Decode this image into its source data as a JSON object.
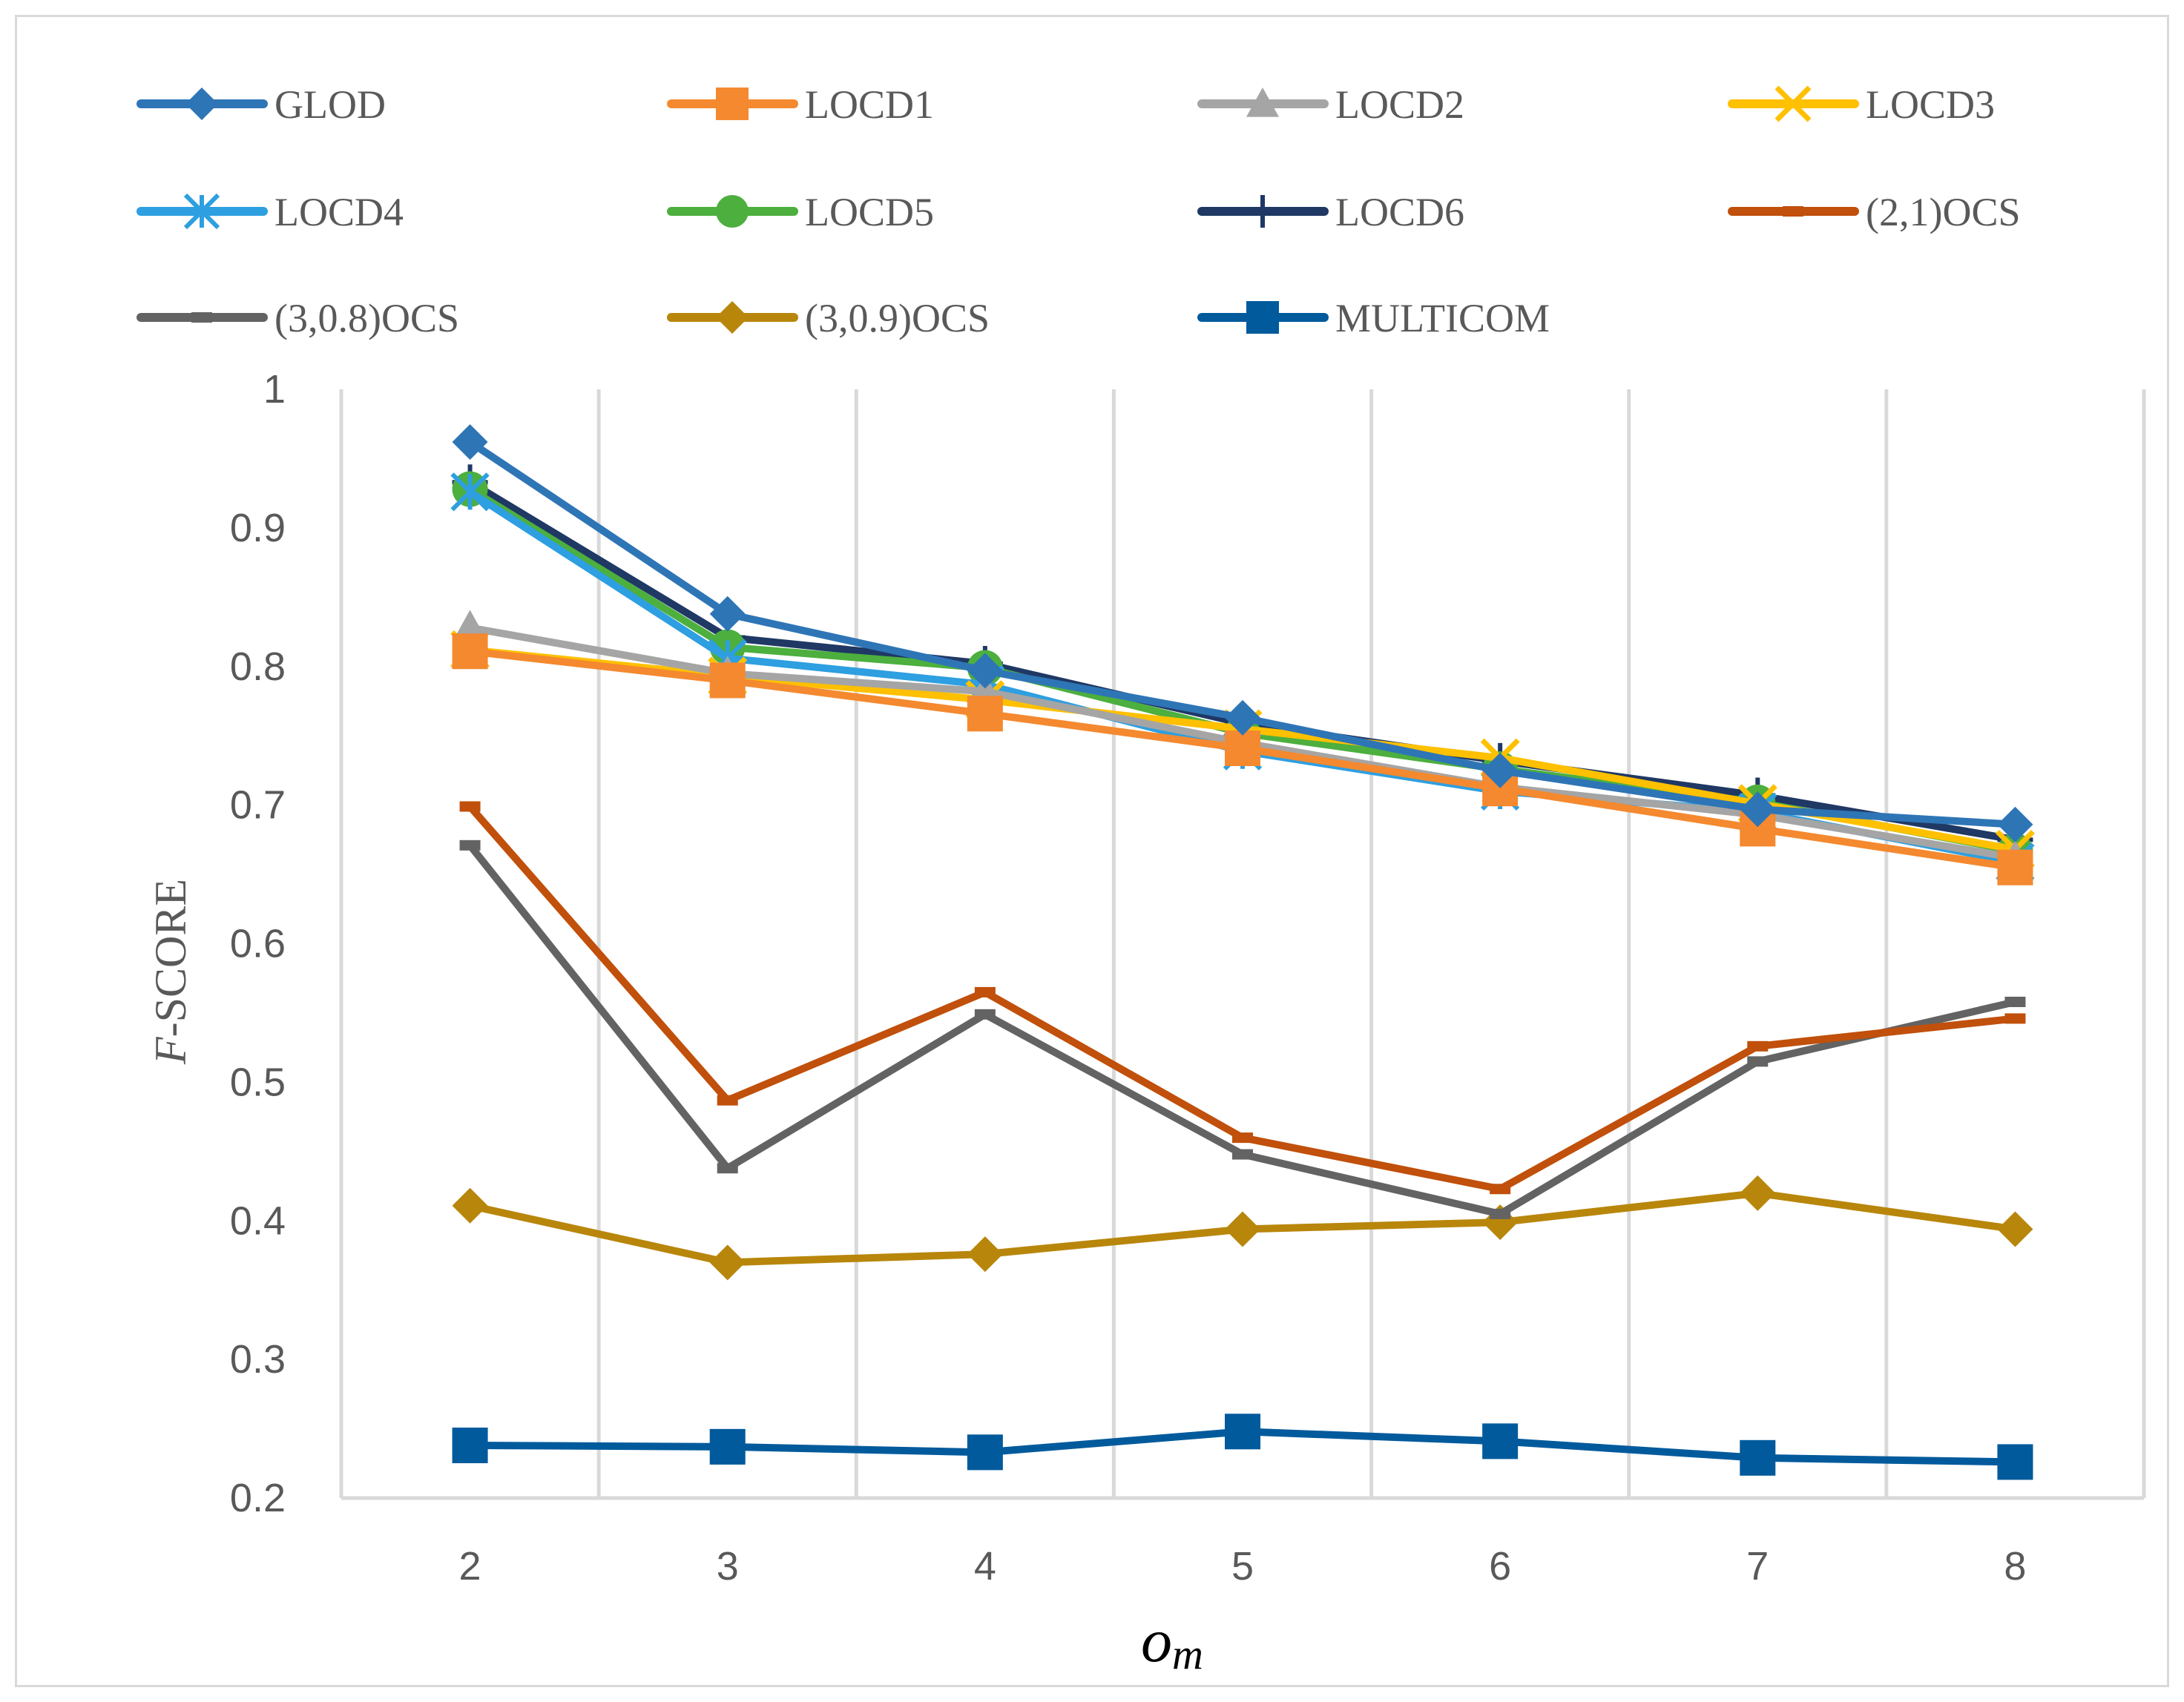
{
  "chart_data": {
    "type": "line",
    "title": "",
    "xlabel_main": "o",
    "xlabel_sub": "m",
    "ylabel_italic": "F",
    "ylabel_rest": "-SCORE",
    "ylim": [
      0.2,
      1.0
    ],
    "yticks": [
      "0.2",
      "0.3",
      "0.4",
      "0.5",
      "0.6",
      "0.7",
      "0.8",
      "0.9",
      "1"
    ],
    "categories": [
      "2",
      "3",
      "4",
      "5",
      "6",
      "7",
      "8"
    ],
    "grid": "vertical",
    "legend_position": "top",
    "series": [
      {
        "name": "GLOD",
        "color": "#2E75B6",
        "marker": "diamond",
        "values": [
          0.962,
          0.838,
          0.797,
          0.763,
          0.725,
          0.697,
          0.686
        ]
      },
      {
        "name": "LOCD1",
        "color": "#F4892F",
        "marker": "square",
        "values": [
          0.811,
          0.79,
          0.766,
          0.741,
          0.712,
          0.683,
          0.655
        ]
      },
      {
        "name": "LOCD2",
        "color": "#A5A5A5",
        "marker": "triangle",
        "values": [
          0.828,
          0.795,
          0.782,
          0.745,
          0.713,
          0.693,
          0.662
        ]
      },
      {
        "name": "LOCD3",
        "color": "#FFC000",
        "marker": "x",
        "values": [
          0.812,
          0.793,
          0.776,
          0.755,
          0.734,
          0.701,
          0.668
        ]
      },
      {
        "name": "LOCD4",
        "color": "#2E9FE0",
        "marker": "asterisk",
        "values": [
          0.926,
          0.806,
          0.787,
          0.739,
          0.71,
          0.695,
          0.659
        ]
      },
      {
        "name": "LOCD5",
        "color": "#4CAF3E",
        "marker": "circle",
        "values": [
          0.928,
          0.814,
          0.799,
          0.752,
          0.726,
          0.702,
          0.667
        ]
      },
      {
        "name": "LOCD6",
        "color": "#1F3864",
        "marker": "plus",
        "values": [
          0.933,
          0.821,
          0.802,
          0.759,
          0.732,
          0.707,
          0.675
        ]
      },
      {
        "name": "(2,1)OCS",
        "color": "#C0500B",
        "marker": "dash",
        "values": [
          0.699,
          0.487,
          0.565,
          0.46,
          0.423,
          0.526,
          0.546
        ]
      },
      {
        "name": "(3,0.8)OCS",
        "color": "#636363",
        "marker": "dash",
        "values": [
          0.671,
          0.438,
          0.549,
          0.448,
          0.405,
          0.515,
          0.558
        ]
      },
      {
        "name": "(3,0.9)OCS",
        "color": "#B8860B",
        "marker": "diamond",
        "values": [
          0.411,
          0.37,
          0.376,
          0.394,
          0.399,
          0.42,
          0.394
        ]
      },
      {
        "name": "MULTICOM",
        "color": "#005A9C",
        "marker": "square",
        "values": [
          0.238,
          0.237,
          0.233,
          0.248,
          0.241,
          0.229,
          0.226
        ]
      }
    ]
  }
}
